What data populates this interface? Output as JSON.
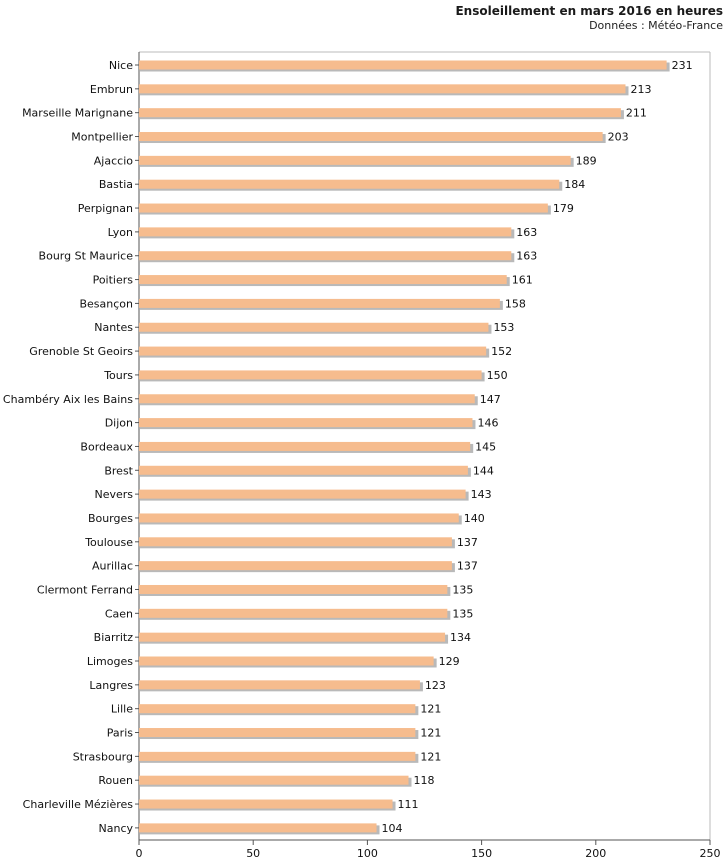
{
  "chart_data": {
    "type": "bar",
    "orientation": "horizontal",
    "title": "Ensoleillement en mars 2016 en heures",
    "subtitle": "Données : Météo-France",
    "xlabel": "",
    "ylabel": "",
    "xlim": [
      0,
      250
    ],
    "xticks": [
      0,
      50,
      100,
      150,
      200,
      250
    ],
    "grid": false,
    "categories": [
      "Nice",
      "Embrun",
      "Marseille Marignane",
      "Montpellier",
      "Ajaccio",
      "Bastia",
      "Perpignan",
      "Lyon",
      "Bourg St Maurice",
      "Poitiers",
      "Besançon",
      "Nantes",
      "Grenoble St Geoirs",
      "Tours",
      "Chambéry Aix les Bains",
      "Dijon",
      "Bordeaux",
      "Brest",
      "Nevers",
      "Bourges",
      "Toulouse",
      "Aurillac",
      "Clermont Ferrand",
      "Caen",
      "Biarritz",
      "Limoges",
      "Langres",
      "Lille",
      "Paris",
      "Strasbourg",
      "Rouen",
      "Charleville Mézières",
      "Nancy"
    ],
    "values": [
      231,
      213,
      211,
      203,
      189,
      184,
      179,
      163,
      163,
      161,
      158,
      153,
      152,
      150,
      147,
      146,
      145,
      144,
      143,
      140,
      137,
      137,
      135,
      135,
      134,
      129,
      123,
      121,
      121,
      121,
      118,
      111,
      104
    ],
    "colors": {
      "bar": "#f6bc8e",
      "bar_shadow": "#b9b9b9",
      "axis": "#555555"
    }
  }
}
